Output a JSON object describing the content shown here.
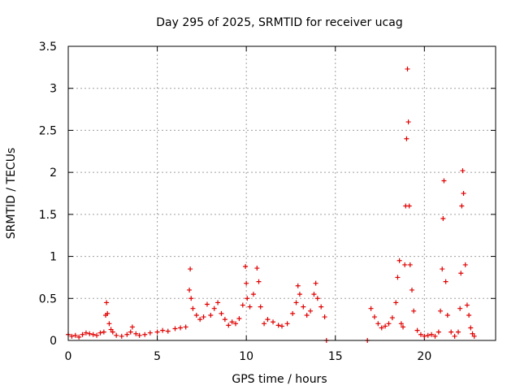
{
  "chart_data": {
    "type": "scatter",
    "title": "Day 295 of 2025, SRMTID for receiver ucag",
    "xlabel": "GPS time / hours",
    "ylabel": "SRMTID / TECUs",
    "xlim": [
      0,
      24
    ],
    "ylim": [
      0,
      3.5
    ],
    "x_ticks": [
      0,
      5,
      10,
      15,
      20
    ],
    "x_tick_labels": [
      "0",
      "5",
      "10",
      "15",
      "20"
    ],
    "y_ticks": [
      0,
      0.5,
      1,
      1.5,
      2,
      2.5,
      3,
      3.5
    ],
    "y_tick_labels": [
      "0",
      "0.5",
      "1",
      "1.5",
      "2",
      "2.5",
      "3",
      "3.5"
    ],
    "grid": true,
    "marker": "+",
    "color": "#e00000",
    "series": [
      {
        "name": "ucag",
        "x": [
          0.0,
          0.2,
          0.4,
          0.6,
          0.8,
          1.0,
          1.2,
          1.4,
          1.6,
          1.8,
          2.0,
          2.1,
          2.15,
          2.2,
          2.3,
          2.4,
          2.5,
          2.7,
          3.0,
          3.3,
          3.5,
          3.6,
          3.8,
          4.0,
          4.3,
          4.6,
          5.0,
          5.3,
          5.6,
          6.0,
          6.3,
          6.6,
          6.8,
          6.85,
          6.9,
          7.0,
          7.2,
          7.4,
          7.6,
          7.8,
          8.0,
          8.2,
          8.4,
          8.6,
          8.8,
          9.0,
          9.2,
          9.4,
          9.6,
          9.8,
          9.95,
          10.0,
          10.05,
          10.2,
          10.4,
          10.6,
          10.7,
          10.8,
          11.0,
          11.2,
          11.5,
          11.8,
          12.0,
          12.3,
          12.6,
          12.8,
          12.9,
          13.0,
          13.2,
          13.4,
          13.6,
          13.8,
          13.9,
          14.0,
          14.2,
          14.4,
          14.5,
          16.8,
          17.0,
          17.2,
          17.4,
          17.6,
          17.8,
          18.0,
          18.2,
          18.4,
          18.5,
          18.6,
          18.7,
          18.8,
          18.9,
          18.95,
          19.0,
          19.05,
          19.1,
          19.15,
          19.2,
          19.3,
          19.4,
          19.6,
          19.8,
          20.0,
          20.2,
          20.4,
          20.6,
          20.8,
          20.9,
          21.0,
          21.05,
          21.1,
          21.2,
          21.3,
          21.5,
          21.7,
          21.9,
          22.0,
          22.05,
          22.1,
          22.15,
          22.2,
          22.3,
          22.4,
          22.5,
          22.6,
          22.7,
          22.8
        ],
        "y": [
          0.07,
          0.05,
          0.06,
          0.04,
          0.07,
          0.09,
          0.08,
          0.07,
          0.06,
          0.09,
          0.1,
          0.3,
          0.45,
          0.32,
          0.2,
          0.13,
          0.1,
          0.06,
          0.05,
          0.07,
          0.1,
          0.16,
          0.08,
          0.06,
          0.07,
          0.09,
          0.1,
          0.12,
          0.11,
          0.14,
          0.15,
          0.16,
          0.6,
          0.85,
          0.5,
          0.38,
          0.3,
          0.25,
          0.28,
          0.43,
          0.3,
          0.38,
          0.45,
          0.32,
          0.25,
          0.18,
          0.22,
          0.2,
          0.26,
          0.42,
          0.88,
          0.68,
          0.5,
          0.4,
          0.55,
          0.86,
          0.7,
          0.4,
          0.2,
          0.25,
          0.22,
          0.18,
          0.17,
          0.2,
          0.32,
          0.45,
          0.65,
          0.55,
          0.4,
          0.3,
          0.35,
          0.55,
          0.68,
          0.5,
          0.4,
          0.28,
          0.0,
          0.0,
          0.38,
          0.28,
          0.2,
          0.15,
          0.17,
          0.2,
          0.27,
          0.45,
          0.75,
          0.95,
          0.2,
          0.16,
          0.9,
          1.6,
          2.4,
          3.23,
          2.6,
          1.6,
          0.9,
          0.6,
          0.35,
          0.12,
          0.07,
          0.05,
          0.06,
          0.07,
          0.05,
          0.1,
          0.35,
          0.85,
          1.45,
          1.9,
          0.7,
          0.3,
          0.1,
          0.05,
          0.1,
          0.38,
          0.8,
          1.6,
          2.02,
          1.75,
          0.9,
          0.42,
          0.3,
          0.15,
          0.08,
          0.05
        ]
      }
    ]
  }
}
